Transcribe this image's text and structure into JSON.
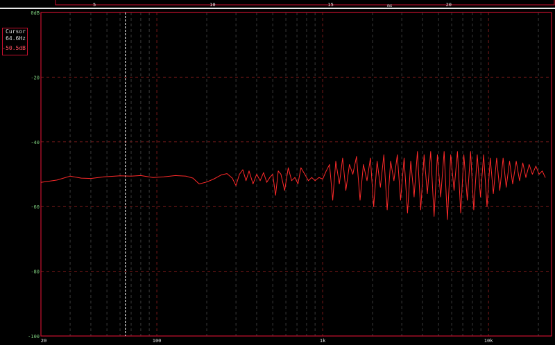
{
  "time_axis": {
    "ticks": [
      {
        "v": 5,
        "label": "5"
      },
      {
        "v": 10,
        "label": "10"
      },
      {
        "v": 15,
        "label": "15"
      },
      {
        "v": 20,
        "label": "20"
      }
    ],
    "unit": "ms",
    "unit_at": 17.5,
    "range": [
      1.0,
      24.5
    ]
  },
  "cursor": {
    "title": "Cursor",
    "frequency": "64.6Hz",
    "level": "-50.5dB",
    "freq_value": 64.6
  },
  "colors": {
    "trace": "#ff2a2a",
    "frame": "#c8102e",
    "grid": "#6a6a6a",
    "grid_major": "#7a1a1a",
    "ylabel": "#7fd07f",
    "xlabel": "#e0e0e0",
    "cursor_line": "#ffffff"
  },
  "chart_data": {
    "type": "line",
    "xscale": "log",
    "xlim": [
      20,
      24000
    ],
    "ylim": [
      -100,
      0
    ],
    "grid": true,
    "xticks": [
      {
        "v": 20,
        "label": "20"
      },
      {
        "v": 100,
        "label": "100"
      },
      {
        "v": 1000,
        "label": "1k"
      },
      {
        "v": 10000,
        "label": "10k"
      }
    ],
    "yticks": [
      {
        "v": 0,
        "label": "0dB"
      },
      {
        "v": -20,
        "label": "-20"
      },
      {
        "v": -40,
        "label": "-40"
      },
      {
        "v": -60,
        "label": "-60"
      },
      {
        "v": -80,
        "label": "-80"
      },
      {
        "v": -100,
        "label": "-100"
      }
    ],
    "points": [
      [
        20,
        -52.5
      ],
      [
        25,
        -51.8
      ],
      [
        30,
        -50.6
      ],
      [
        35,
        -51.2
      ],
      [
        40,
        -51.3
      ],
      [
        48,
        -50.8
      ],
      [
        60,
        -50.5
      ],
      [
        70,
        -50.6
      ],
      [
        80,
        -50.4
      ],
      [
        95,
        -51
      ],
      [
        110,
        -50.8
      ],
      [
        130,
        -50.4
      ],
      [
        150,
        -50.6
      ],
      [
        165,
        -51.2
      ],
      [
        180,
        -53
      ],
      [
        200,
        -52.4
      ],
      [
        220,
        -51.5
      ],
      [
        245,
        -50.2
      ],
      [
        265,
        -49.8
      ],
      [
        285,
        -51.2
      ],
      [
        300,
        -53.5
      ],
      [
        315,
        -50
      ],
      [
        330,
        -48.6
      ],
      [
        345,
        -52
      ],
      [
        360,
        -49
      ],
      [
        380,
        -53
      ],
      [
        400,
        -50
      ],
      [
        420,
        -52
      ],
      [
        440,
        -49.5
      ],
      [
        460,
        -52.5
      ],
      [
        480,
        -51
      ],
      [
        500,
        -50
      ],
      [
        520,
        -56.5
      ],
      [
        540,
        -49
      ],
      [
        560,
        -50
      ],
      [
        590,
        -55
      ],
      [
        620,
        -48
      ],
      [
        650,
        -52
      ],
      [
        680,
        -51
      ],
      [
        710,
        -53
      ],
      [
        740,
        -48
      ],
      [
        780,
        -50
      ],
      [
        820,
        -52
      ],
      [
        860,
        -51
      ],
      [
        900,
        -52
      ],
      [
        950,
        -51
      ],
      [
        1000,
        -51.5
      ],
      [
        1050,
        -49
      ],
      [
        1100,
        -47
      ],
      [
        1150,
        -58
      ],
      [
        1200,
        -46
      ],
      [
        1260,
        -53
      ],
      [
        1320,
        -45
      ],
      [
        1380,
        -55
      ],
      [
        1450,
        -47
      ],
      [
        1520,
        -50
      ],
      [
        1600,
        -44.5
      ],
      [
        1680,
        -58
      ],
      [
        1760,
        -47
      ],
      [
        1850,
        -52
      ],
      [
        1940,
        -45
      ],
      [
        2030,
        -60
      ],
      [
        2130,
        -46
      ],
      [
        2230,
        -54
      ],
      [
        2340,
        -44
      ],
      [
        2450,
        -61
      ],
      [
        2570,
        -46
      ],
      [
        2690,
        -52
      ],
      [
        2820,
        -44
      ],
      [
        2950,
        -58
      ],
      [
        3100,
        -45
      ],
      [
        3250,
        -62
      ],
      [
        3400,
        -46
      ],
      [
        3560,
        -57
      ],
      [
        3730,
        -43
      ],
      [
        3900,
        -61
      ],
      [
        4090,
        -44
      ],
      [
        4280,
        -56
      ],
      [
        4480,
        -43
      ],
      [
        4700,
        -63
      ],
      [
        4920,
        -44
      ],
      [
        5150,
        -57
      ],
      [
        5400,
        -43
      ],
      [
        5650,
        -64
      ],
      [
        5920,
        -44
      ],
      [
        6200,
        -55
      ],
      [
        6500,
        -43
      ],
      [
        6800,
        -62
      ],
      [
        7100,
        -44
      ],
      [
        7450,
        -58
      ],
      [
        7800,
        -43
      ],
      [
        8150,
        -61
      ],
      [
        8550,
        -44
      ],
      [
        8950,
        -57
      ],
      [
        9350,
        -44
      ],
      [
        9800,
        -60
      ],
      [
        10250,
        -45
      ],
      [
        10700,
        -56
      ],
      [
        11200,
        -45
      ],
      [
        11700,
        -55
      ],
      [
        12250,
        -45
      ],
      [
        12800,
        -54
      ],
      [
        13400,
        -46
      ],
      [
        14000,
        -53
      ],
      [
        14700,
        -46
      ],
      [
        15400,
        -52
      ],
      [
        16100,
        -46.5
      ],
      [
        16800,
        -51
      ],
      [
        17600,
        -47
      ],
      [
        18400,
        -50
      ],
      [
        19300,
        -47.5
      ],
      [
        20200,
        -50
      ],
      [
        21100,
        -49
      ],
      [
        22000,
        -51
      ]
    ]
  }
}
